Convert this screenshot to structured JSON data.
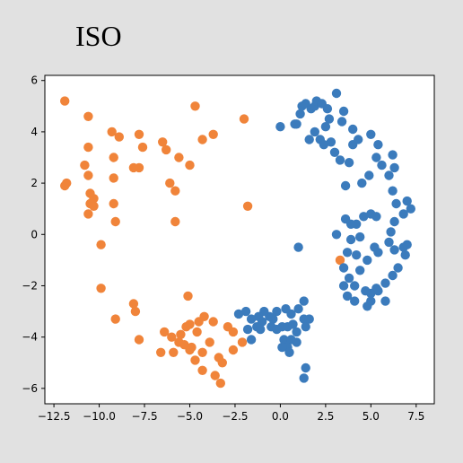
{
  "chart_data": {
    "type": "scatter",
    "title": "ISO",
    "xlabel": "",
    "ylabel": "",
    "xlim": [
      -13,
      8.5
    ],
    "ylim": [
      -6.6,
      6.2
    ],
    "xticks": [
      -12.5,
      -10.0,
      -7.5,
      -5.0,
      -2.5,
      0.0,
      2.5,
      5.0,
      7.5
    ],
    "xtick_labels": [
      "−12.5",
      "−10.0",
      "−7.5",
      "−5.0",
      "−2.5",
      "0.0",
      "2.5",
      "5.0",
      "7.5"
    ],
    "yticks": [
      -6,
      -4,
      -2,
      0,
      2,
      4,
      6
    ],
    "ytick_labels": [
      "−6",
      "−4",
      "−2",
      "0",
      "2",
      "4",
      "6"
    ],
    "grid": false,
    "series": [
      {
        "color": "#f0843a",
        "points": [
          [
            -11.9,
            5.2
          ],
          [
            -10.6,
            4.6
          ],
          [
            -9.3,
            4.0
          ],
          [
            -8.9,
            3.8
          ],
          [
            -7.8,
            3.9
          ],
          [
            -6.5,
            3.6
          ],
          [
            -4.7,
            5.0
          ],
          [
            -2.0,
            4.5
          ],
          [
            -3.7,
            3.9
          ],
          [
            -4.3,
            3.7
          ],
          [
            -5.0,
            2.7
          ],
          [
            -5.6,
            3.0
          ],
          [
            -6.3,
            3.3
          ],
          [
            -7.6,
            3.4
          ],
          [
            -8.1,
            2.6
          ],
          [
            -7.8,
            2.6
          ],
          [
            -6.1,
            2.0
          ],
          [
            -5.8,
            1.7
          ],
          [
            -9.2,
            3.0
          ],
          [
            -9.2,
            2.2
          ],
          [
            -10.6,
            3.4
          ],
          [
            -10.8,
            2.7
          ],
          [
            -10.6,
            2.3
          ],
          [
            -10.5,
            1.6
          ],
          [
            -10.3,
            1.4
          ],
          [
            -10.5,
            1.2
          ],
          [
            -10.3,
            1.1
          ],
          [
            -9.2,
            1.2
          ],
          [
            -10.6,
            0.8
          ],
          [
            -11.9,
            1.9
          ],
          [
            -11.8,
            2.0
          ],
          [
            -9.1,
            0.5
          ],
          [
            -5.8,
            0.5
          ],
          [
            -1.8,
            1.1
          ],
          [
            -9.9,
            -0.4
          ],
          [
            -9.9,
            -2.1
          ],
          [
            -9.1,
            -3.3
          ],
          [
            -8.0,
            -3.0
          ],
          [
            -8.1,
            -2.7
          ],
          [
            -7.8,
            -4.1
          ],
          [
            -6.6,
            -4.6
          ],
          [
            -6.4,
            -3.8
          ],
          [
            -6.0,
            -4.0
          ],
          [
            -5.6,
            -4.2
          ],
          [
            -5.5,
            -3.9
          ],
          [
            -5.3,
            -4.3
          ],
          [
            -5.9,
            -4.6
          ],
          [
            -5.2,
            -3.6
          ],
          [
            -5.0,
            -3.5
          ],
          [
            -4.9,
            -4.4
          ],
          [
            -5.0,
            -4.5
          ],
          [
            -4.6,
            -3.8
          ],
          [
            -4.3,
            -4.6
          ],
          [
            -4.7,
            -4.9
          ],
          [
            -3.9,
            -4.2
          ],
          [
            -3.4,
            -4.8
          ],
          [
            -3.2,
            -5.0
          ],
          [
            -3.6,
            -5.5
          ],
          [
            -4.3,
            -5.3
          ],
          [
            -3.3,
            -5.8
          ],
          [
            -2.6,
            -4.5
          ],
          [
            -2.1,
            -4.2
          ],
          [
            -2.6,
            -3.8
          ],
          [
            -5.1,
            -2.4
          ],
          [
            -4.5,
            -3.4
          ],
          [
            -3.7,
            -3.4
          ],
          [
            -4.2,
            -3.2
          ],
          [
            -2.9,
            -3.6
          ],
          [
            3.3,
            -1.0
          ]
        ]
      },
      {
        "color": "#3b7bbc",
        "points": [
          [
            0.0,
            4.2
          ],
          [
            0.8,
            4.3
          ],
          [
            0.9,
            4.3
          ],
          [
            1.1,
            4.7
          ],
          [
            1.2,
            5.0
          ],
          [
            1.4,
            5.1
          ],
          [
            1.7,
            4.9
          ],
          [
            1.9,
            5.0
          ],
          [
            2.0,
            5.2
          ],
          [
            2.3,
            5.1
          ],
          [
            2.6,
            4.9
          ],
          [
            3.1,
            5.5
          ],
          [
            3.5,
            4.8
          ],
          [
            3.4,
            4.4
          ],
          [
            2.7,
            4.5
          ],
          [
            2.5,
            4.2
          ],
          [
            1.9,
            4.0
          ],
          [
            1.6,
            3.7
          ],
          [
            2.2,
            3.7
          ],
          [
            2.4,
            3.5
          ],
          [
            2.8,
            3.6
          ],
          [
            3.0,
            3.2
          ],
          [
            3.3,
            2.9
          ],
          [
            3.8,
            2.8
          ],
          [
            4.0,
            3.5
          ],
          [
            4.3,
            3.7
          ],
          [
            4.0,
            4.1
          ],
          [
            5.0,
            3.9
          ],
          [
            5.4,
            3.5
          ],
          [
            5.3,
            3.0
          ],
          [
            5.6,
            2.7
          ],
          [
            4.9,
            2.3
          ],
          [
            4.5,
            2.0
          ],
          [
            3.6,
            1.9
          ],
          [
            6.2,
            3.1
          ],
          [
            6.3,
            2.6
          ],
          [
            6.0,
            2.3
          ],
          [
            6.2,
            1.7
          ],
          [
            6.4,
            1.2
          ],
          [
            7.0,
            1.3
          ],
          [
            7.2,
            1.0
          ],
          [
            6.8,
            0.8
          ],
          [
            6.3,
            0.5
          ],
          [
            6.1,
            0.1
          ],
          [
            5.3,
            0.7
          ],
          [
            5.0,
            0.8
          ],
          [
            4.6,
            0.7
          ],
          [
            4.2,
            0.4
          ],
          [
            3.9,
            0.4
          ],
          [
            3.6,
            0.6
          ],
          [
            3.1,
            0.0
          ],
          [
            3.9,
            -0.2
          ],
          [
            4.4,
            -0.1
          ],
          [
            5.2,
            -0.5
          ],
          [
            5.4,
            -0.7
          ],
          [
            6.0,
            -0.3
          ],
          [
            6.3,
            -0.6
          ],
          [
            6.8,
            -0.5
          ],
          [
            7.0,
            -0.4
          ],
          [
            6.9,
            -0.8
          ],
          [
            6.5,
            -1.3
          ],
          [
            6.2,
            -1.6
          ],
          [
            5.8,
            -1.9
          ],
          [
            5.3,
            -2.1
          ],
          [
            5.0,
            -2.3
          ],
          [
            4.7,
            -2.2
          ],
          [
            4.8,
            -2.8
          ],
          [
            5.0,
            -2.6
          ],
          [
            5.4,
            -2.2
          ],
          [
            5.8,
            -2.6
          ],
          [
            4.1,
            -2.0
          ],
          [
            4.4,
            -1.4
          ],
          [
            4.8,
            -1.0
          ],
          [
            4.2,
            -0.8
          ],
          [
            3.7,
            -0.7
          ],
          [
            3.5,
            -1.3
          ],
          [
            3.8,
            -1.7
          ],
          [
            3.5,
            -2.0
          ],
          [
            3.7,
            -2.4
          ],
          [
            4.1,
            -2.6
          ],
          [
            1.0,
            -0.5
          ],
          [
            1.3,
            -2.6
          ],
          [
            1.0,
            -2.9
          ],
          [
            1.3,
            -3.3
          ],
          [
            0.6,
            -3.1
          ],
          [
            0.3,
            -2.9
          ],
          [
            -0.2,
            -3.0
          ],
          [
            -0.4,
            -3.3
          ],
          [
            -0.6,
            -3.2
          ],
          [
            -0.9,
            -3.0
          ],
          [
            -1.2,
            -3.2
          ],
          [
            -1.6,
            -3.3
          ],
          [
            -1.9,
            -3.0
          ],
          [
            -2.3,
            -3.1
          ],
          [
            -1.0,
            -3.4
          ],
          [
            -1.3,
            -3.6
          ],
          [
            -1.1,
            -3.7
          ],
          [
            -1.8,
            -3.7
          ],
          [
            -1.6,
            -4.1
          ],
          [
            -0.5,
            -3.6
          ],
          [
            -0.2,
            -3.7
          ],
          [
            0.1,
            -3.6
          ],
          [
            0.4,
            -3.6
          ],
          [
            0.7,
            -3.5
          ],
          [
            0.9,
            -3.8
          ],
          [
            1.4,
            -3.6
          ],
          [
            1.6,
            -3.3
          ],
          [
            0.2,
            -4.1
          ],
          [
            0.6,
            -4.1
          ],
          [
            0.9,
            -4.2
          ],
          [
            0.4,
            -4.4
          ],
          [
            0.1,
            -4.4
          ],
          [
            0.5,
            -4.6
          ],
          [
            1.4,
            -5.2
          ],
          [
            1.3,
            -5.6
          ]
        ]
      }
    ]
  }
}
